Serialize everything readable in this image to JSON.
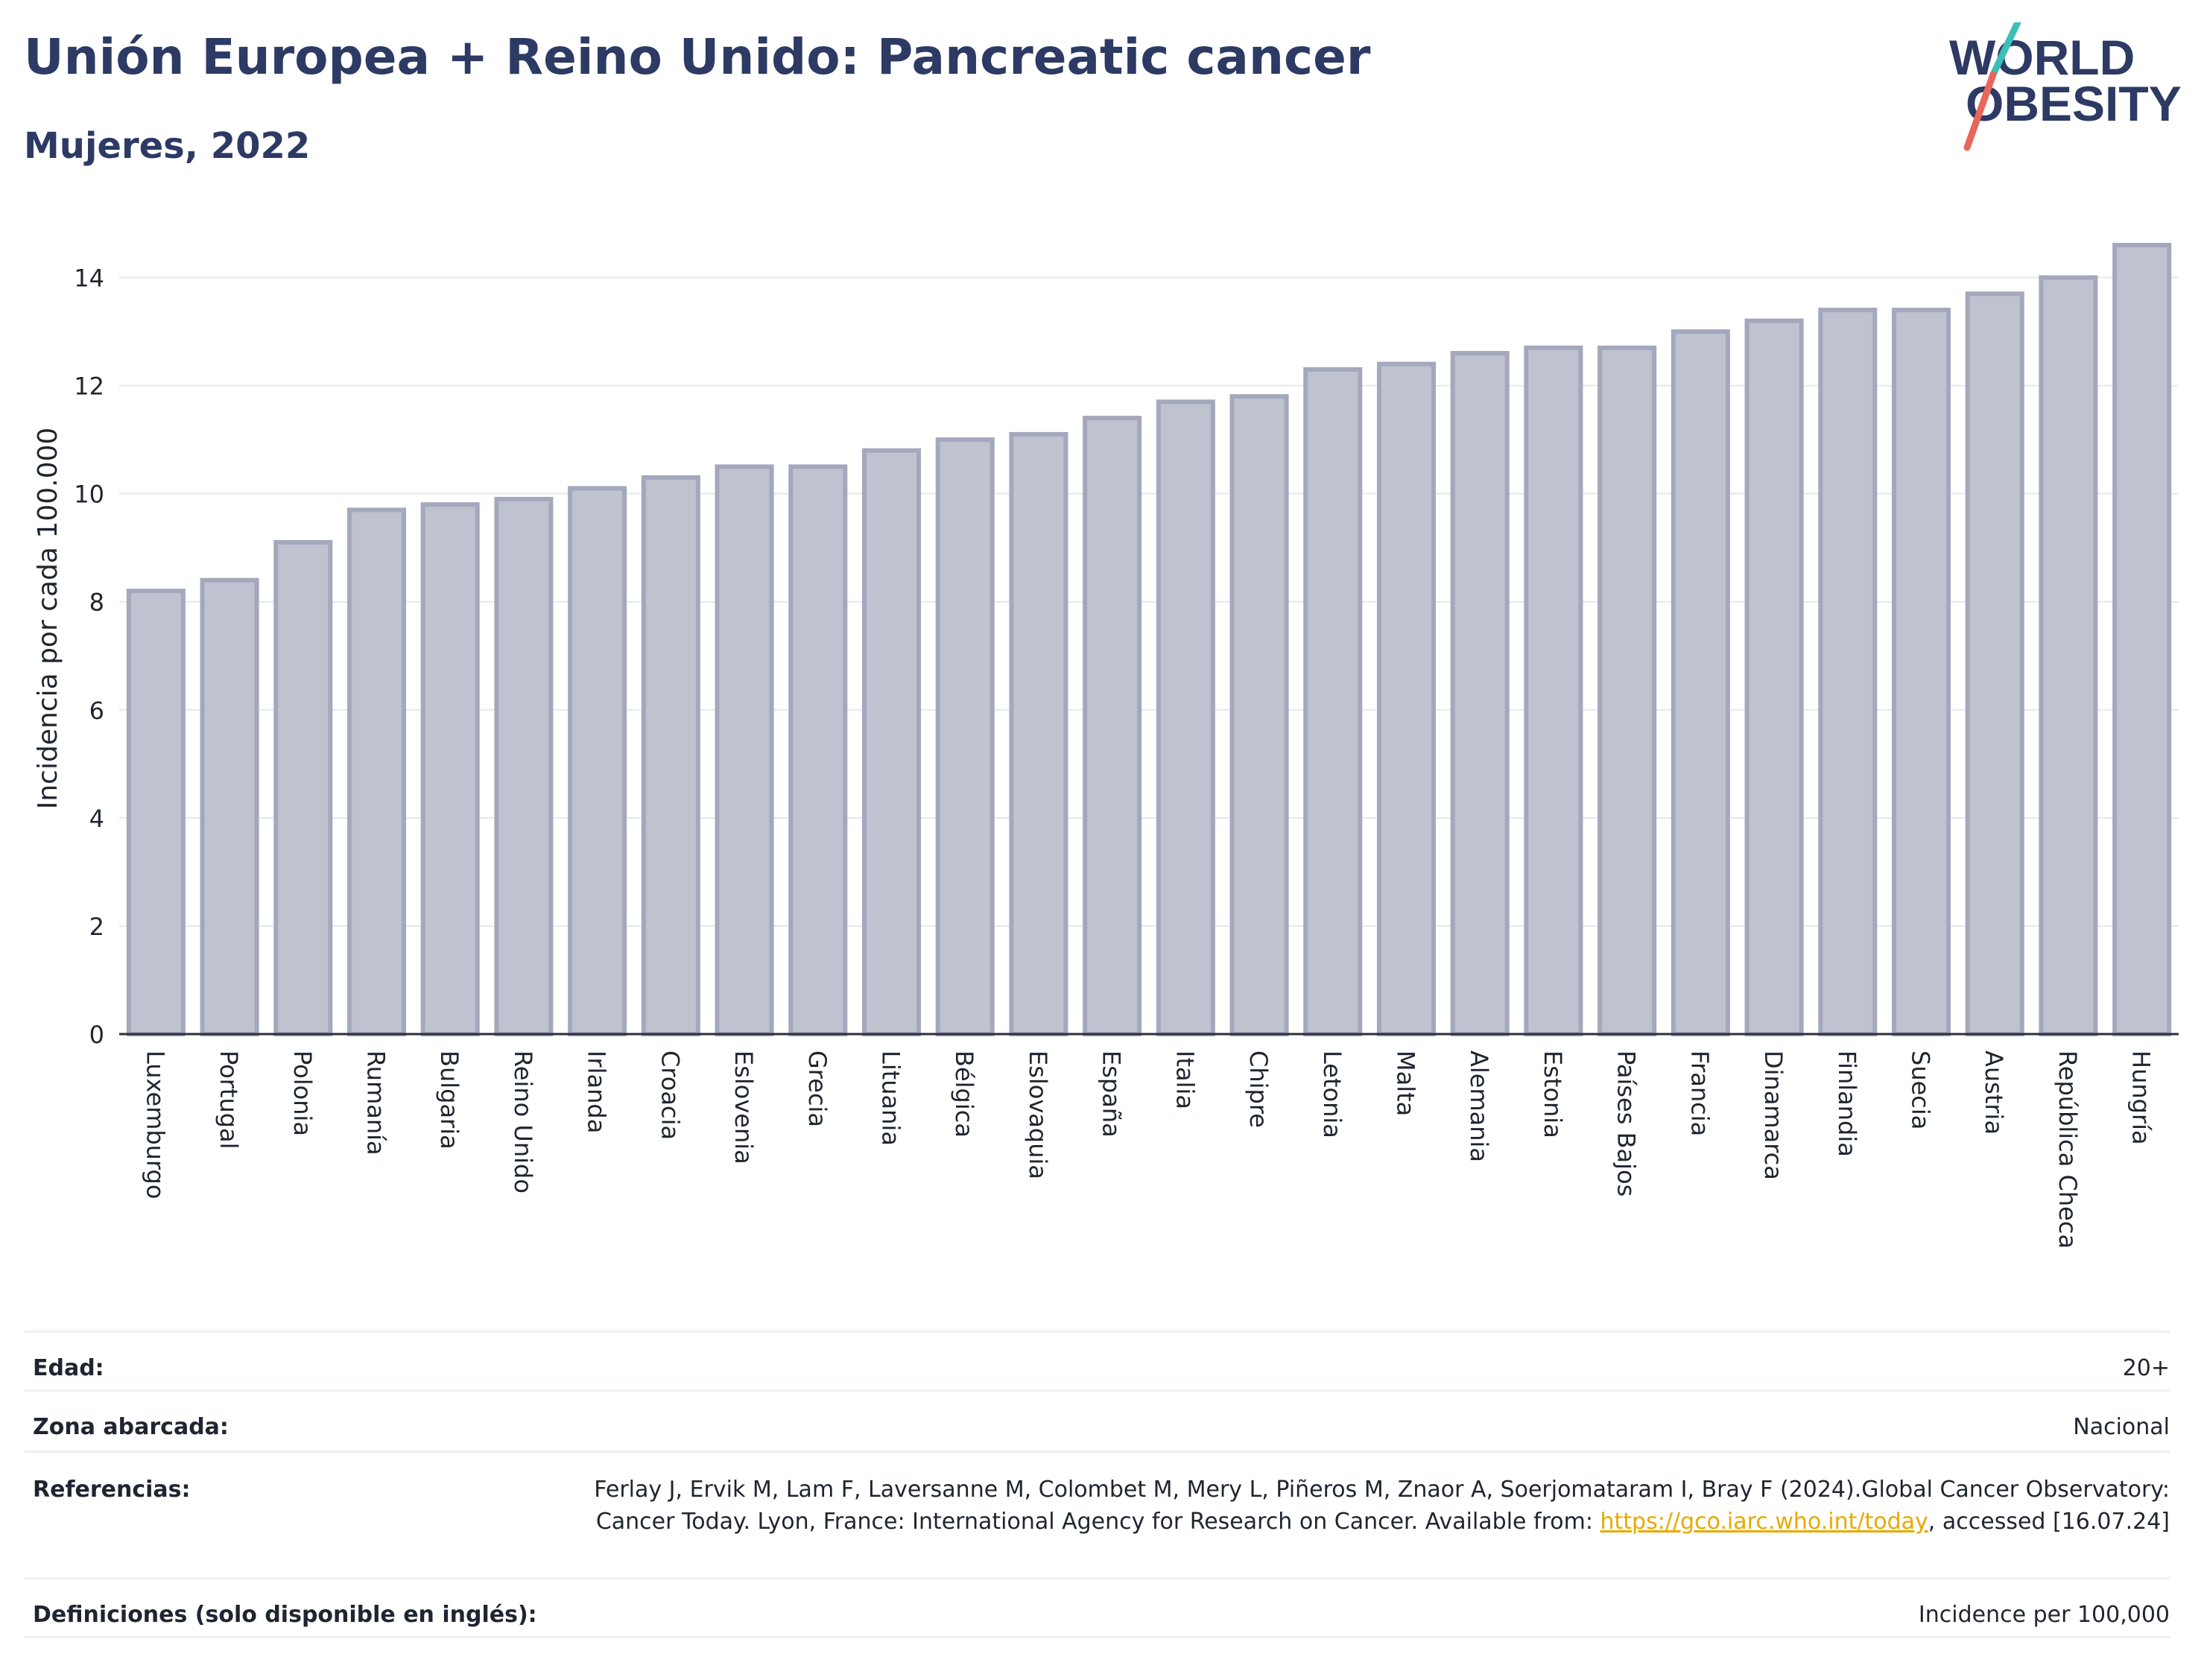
{
  "header": {
    "title": "Unión Europea + Reino Unido: Pancreatic cancer",
    "subtitle": "Mujeres, 2022"
  },
  "logo": {
    "line1": "WORLD",
    "line2": "OBESITY",
    "colors": {
      "text": "#2c3a64",
      "slash_top": "#3dbfb8",
      "slash_bottom": "#e8665a"
    }
  },
  "chart_data": {
    "type": "bar",
    "ylabel": "Incidencia por cada 100.000",
    "ylim": [
      0,
      15
    ],
    "yticks": [
      0,
      2,
      4,
      6,
      8,
      10,
      12,
      14
    ],
    "grid": true,
    "categories": [
      "Luxemburgo",
      "Portugal",
      "Polonia",
      "Rumanía",
      "Bulgaria",
      "Reino Unido",
      "Irlanda",
      "Croacia",
      "Eslovenia",
      "Grecia",
      "Lituania",
      "Bélgica",
      "Eslovaquia",
      "España",
      "Italia",
      "Chipre",
      "Letonia",
      "Malta",
      "Alemania",
      "Estonia",
      "Países Bajos",
      "Francia",
      "Dinamarca",
      "Finlandia",
      "Suecia",
      "Austria",
      "República Checa",
      "Hungría"
    ],
    "values": [
      8.2,
      8.4,
      9.1,
      9.7,
      9.8,
      9.9,
      10.1,
      10.3,
      10.5,
      10.5,
      10.8,
      11.0,
      11.1,
      11.4,
      11.7,
      11.8,
      12.3,
      12.4,
      12.6,
      12.7,
      12.7,
      13.0,
      13.2,
      13.4,
      13.4,
      13.7,
      14.0,
      14.6
    ],
    "colors": {
      "bar_fill": "#bfc2cf",
      "bar_stroke": "#a3a8bd",
      "grid": "#e6e8ee",
      "axis": "#2b2f3a"
    }
  },
  "info": {
    "age_label": "Edad:",
    "age_value": "20+",
    "area_label": "Zona abarcada:",
    "area_value": "Nacional",
    "refs_label": "Referencias:",
    "refs_text_before": "Ferlay J, Ervik M, Lam F, Laversanne M, Colombet M, Mery L, Piñeros M, Znaor A, Soerjomataram I, Bray F (2024).Global Cancer Observatory: Cancer Today. Lyon, France: International Agency for Research on Cancer. Available from: ",
    "refs_link": "https://gco.iarc.who.int/today",
    "refs_text_after": ", accessed [16.07.24]",
    "defs_label": "Definiciones (solo disponible en inglés):",
    "defs_value": "Incidence per 100,000"
  }
}
